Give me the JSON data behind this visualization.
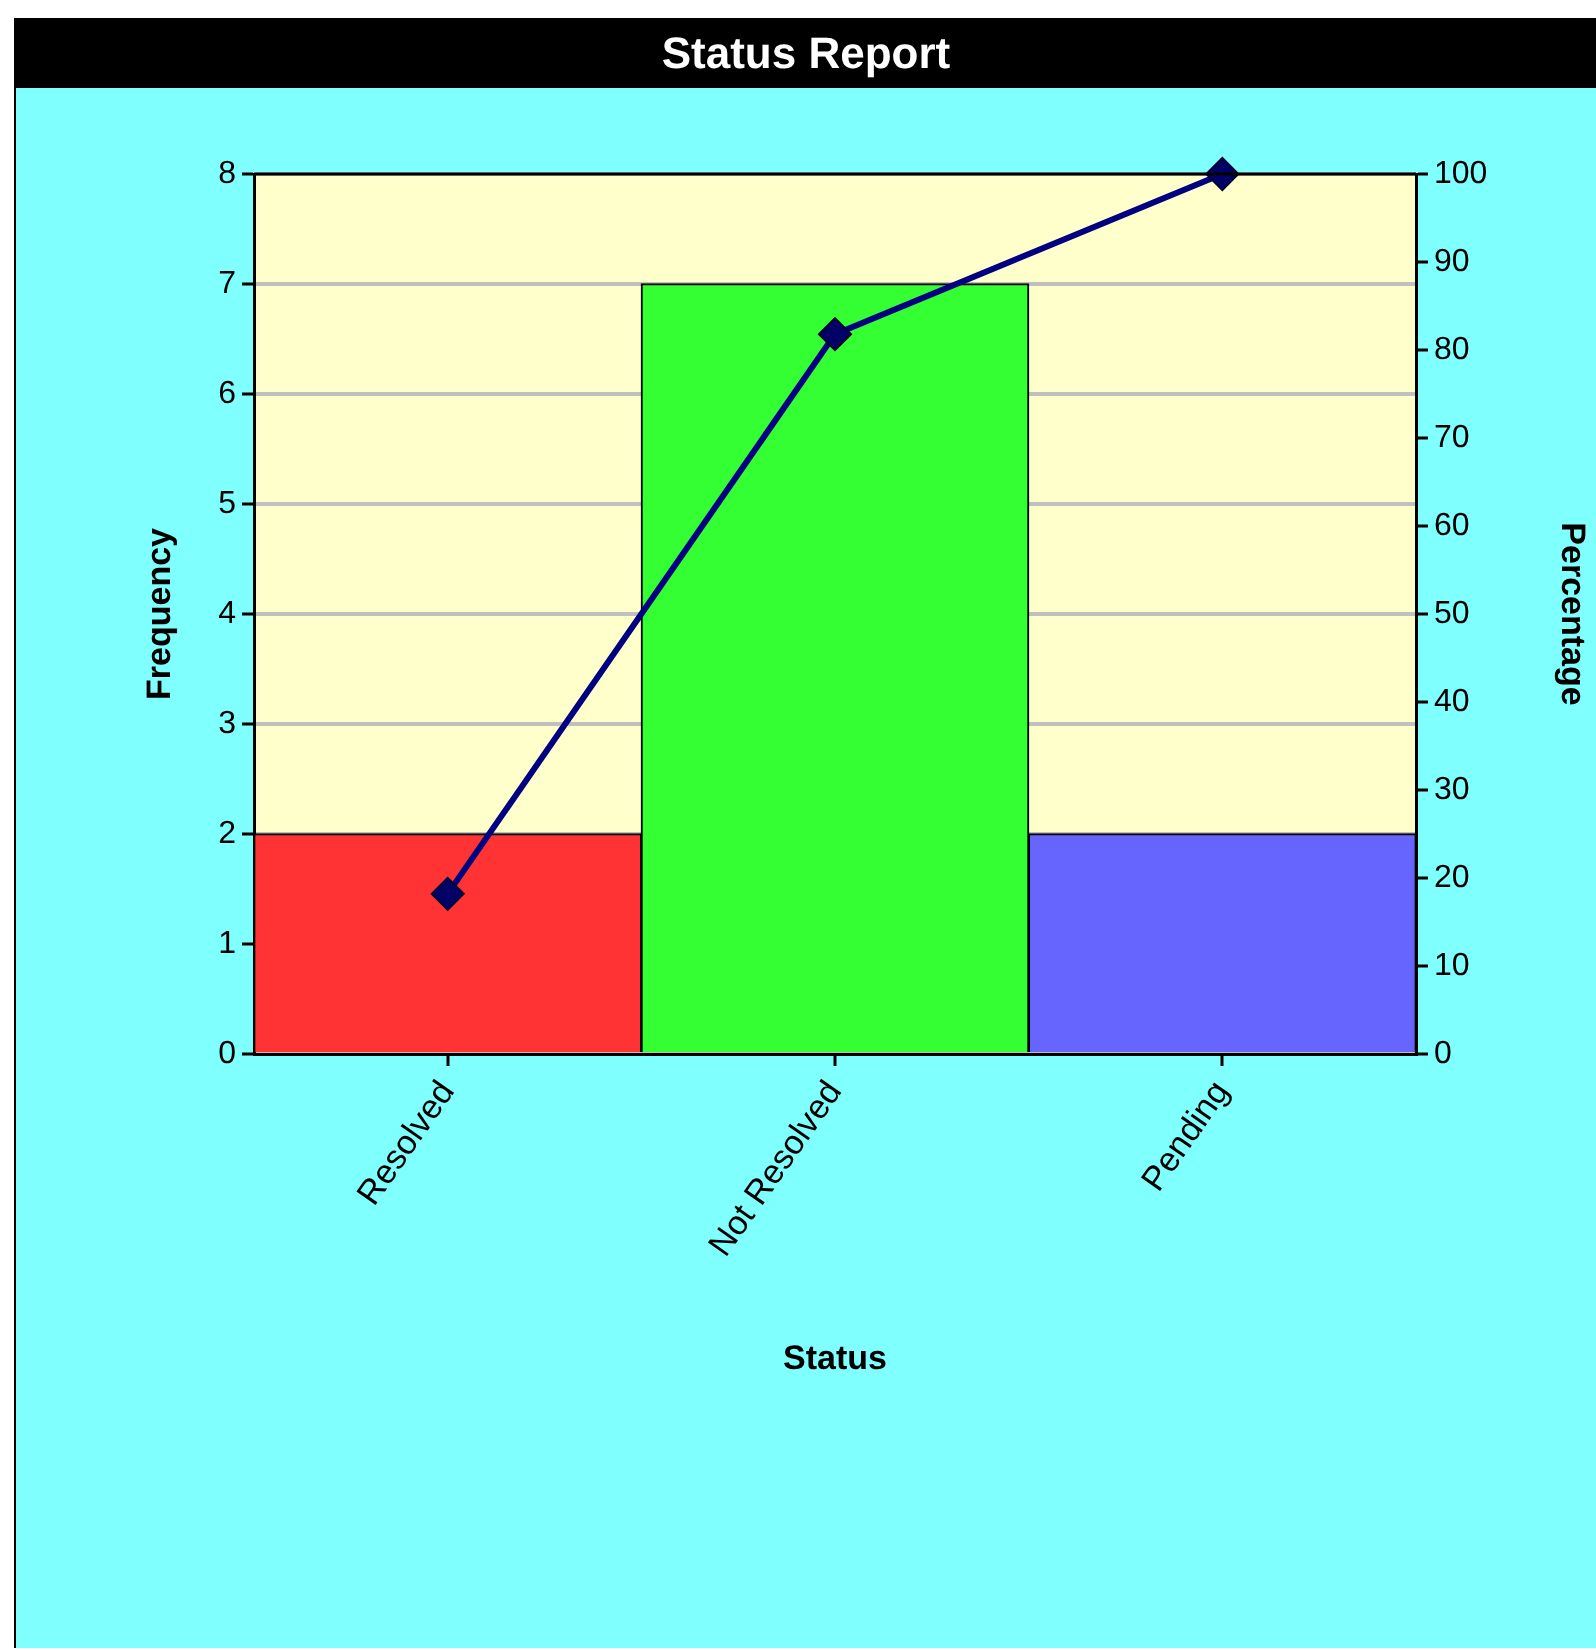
{
  "chart_data": {
    "type": "bar",
    "title": "Status Report",
    "xlabel": "Status",
    "ylabel": "Frequency",
    "y2label": "Percentage",
    "categories": [
      "Resolved",
      "Not Resolved",
      "Pending"
    ],
    "series": [
      {
        "colors": [
          "#ff3333",
          "#33ff33",
          "#6666ff"
        ],
        "values": [
          2,
          7,
          2
        ]
      },
      {
        "type": "line",
        "axis": "y2",
        "color": "#000080",
        "values": [
          18.2,
          81.8,
          100
        ]
      }
    ],
    "ylim": [
      0,
      8
    ],
    "yticks": [
      0,
      1,
      2,
      3,
      4,
      5,
      6,
      7,
      8
    ],
    "y2lim": [
      0,
      100
    ],
    "y2ticks": [
      0,
      10,
      20,
      30,
      40,
      50,
      60,
      70,
      80,
      90,
      100
    ],
    "grid": "y",
    "legend": false,
    "marker": "diamond",
    "line_style": "solid"
  }
}
